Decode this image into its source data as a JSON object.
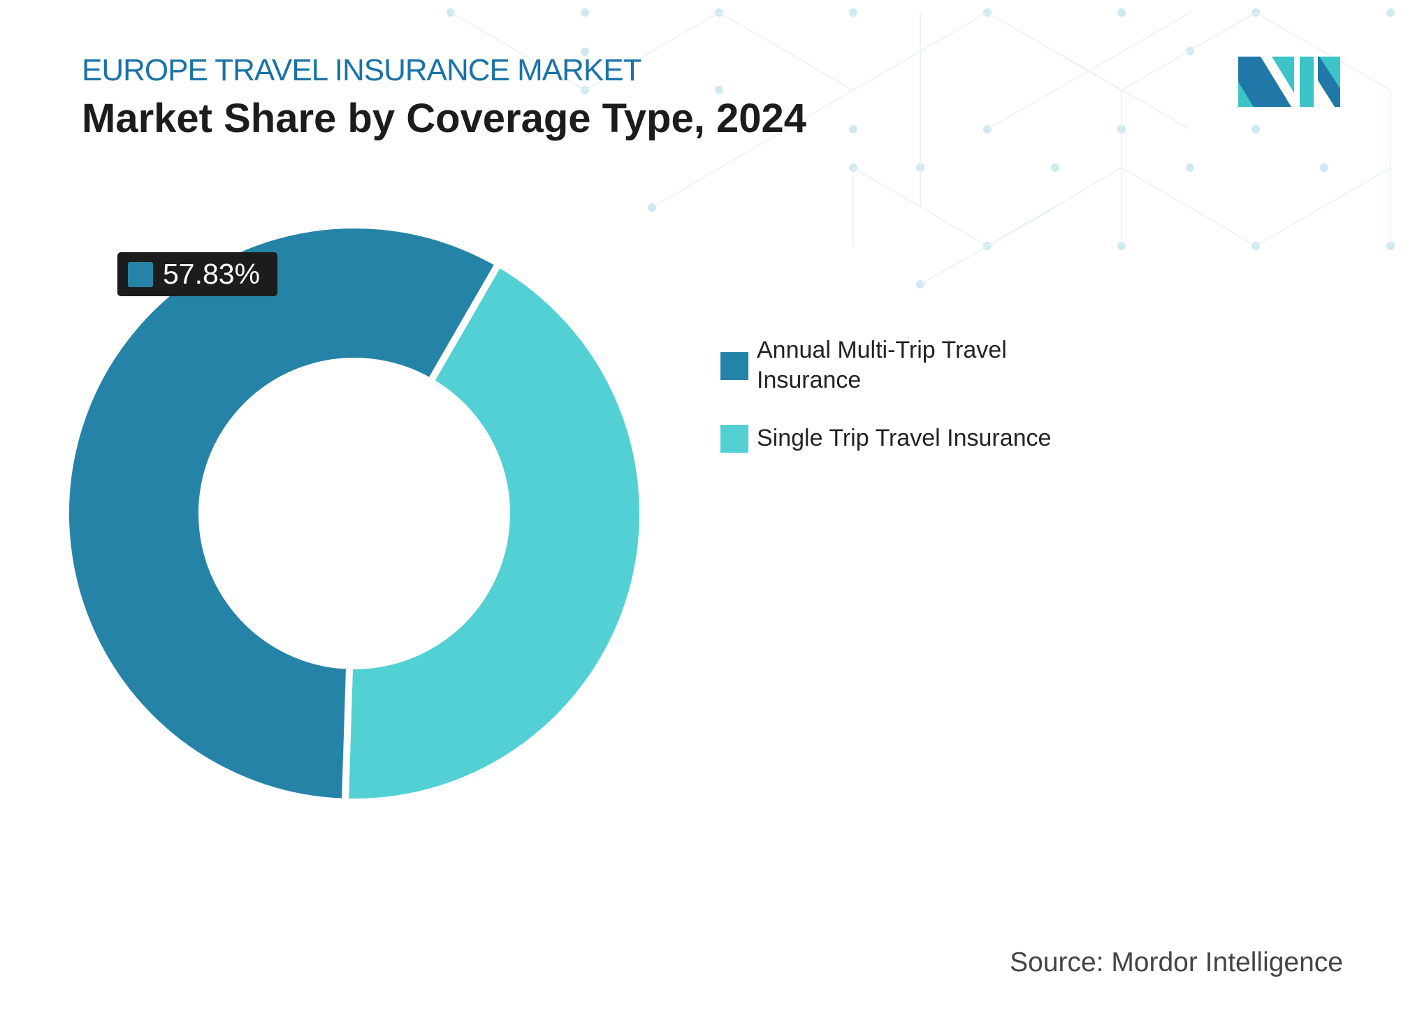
{
  "header": {
    "subtitle": "EUROPE TRAVEL INSURANCE MARKET",
    "title": "Market Share by Coverage Type, 2024"
  },
  "chart_data": {
    "type": "donut",
    "title": "Market Share by Coverage Type, 2024",
    "unit": "%",
    "series": [
      {
        "name": "Annual Multi-Trip Travel Insurance",
        "value": 57.83,
        "color": "#2683a8"
      },
      {
        "name": "Single Trip Travel Insurance",
        "value": 42.17,
        "color": "#52d0d3"
      }
    ],
    "data_labels": [
      {
        "series": "Annual Multi-Trip Travel Insurance",
        "text": "57.83%"
      }
    ],
    "legend_position": "right"
  },
  "source": "Source: Mordor Intelligence",
  "logo": {
    "name": "mordor-intelligence-logo",
    "colors": [
      "#1f78a8",
      "#3cc4c9"
    ]
  }
}
